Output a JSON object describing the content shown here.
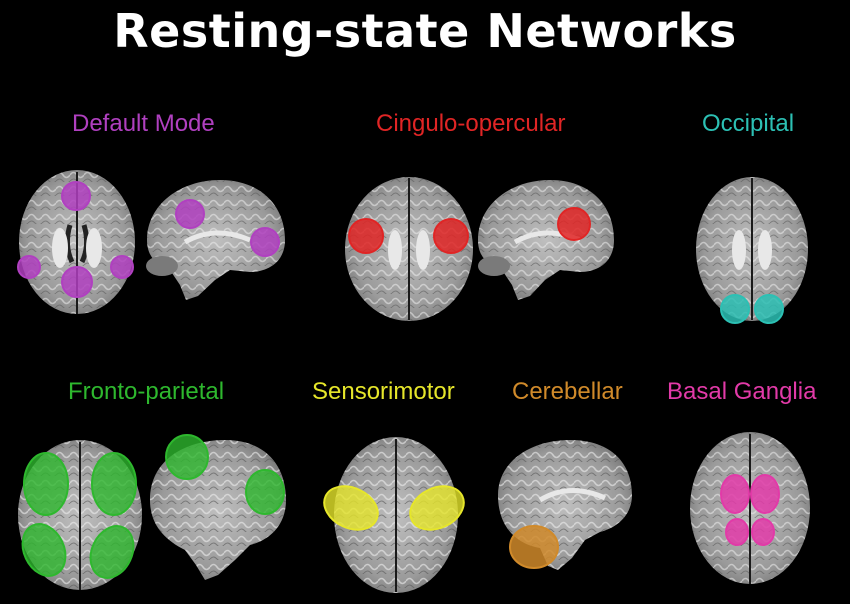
{
  "title": "Resting-state Networks",
  "networks": [
    {
      "label": "Default Mode",
      "color": "#b040c0"
    },
    {
      "label": "Cingulo-opercular",
      "color": "#e02525"
    },
    {
      "label": "Occipital",
      "color": "#2cc0b4"
    },
    {
      "label": "Fronto-parietal",
      "color": "#2eb82e"
    },
    {
      "label": "Sensorimotor",
      "color": "#e6e62a"
    },
    {
      "label": "Cerebellar",
      "color": "#d08a2a"
    },
    {
      "label": "Basal Ganglia",
      "color": "#e23aa8"
    }
  ]
}
